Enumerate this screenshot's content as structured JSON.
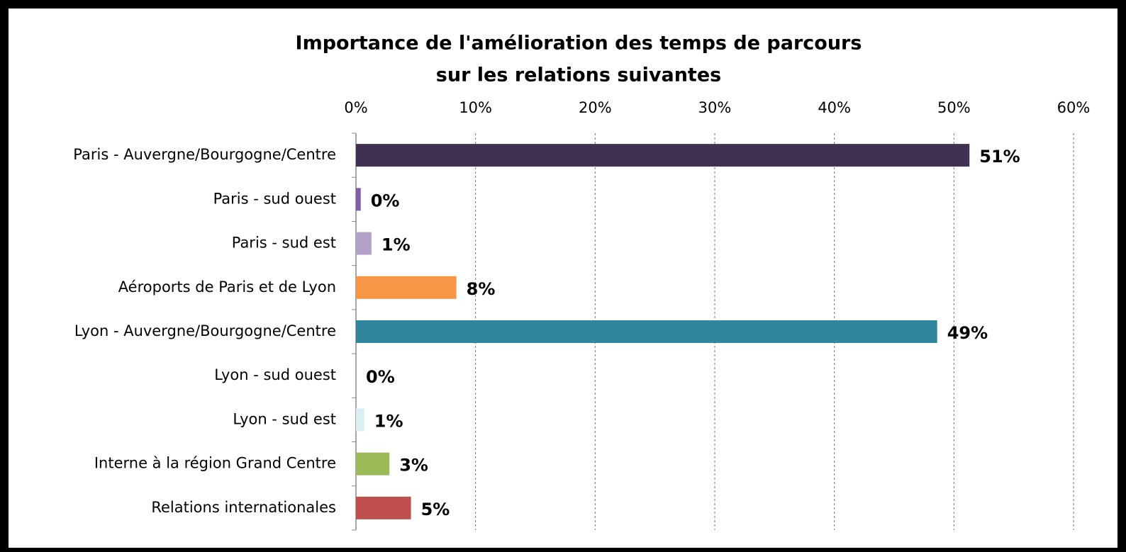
{
  "chart_data": {
    "type": "bar",
    "orientation": "horizontal",
    "title": [
      "Importance de l'amélioration des temps de parcours",
      "sur les relations suivantes"
    ],
    "categories": [
      "Paris - Auvergne/Bourgogne/Centre",
      "Paris - sud ouest",
      "Paris - sud est",
      "Aéroports de Paris et de Lyon",
      "Lyon - Auvergne/Bourgogne/Centre",
      "Lyon - sud ouest",
      "Lyon - sud est",
      "Interne à la région Grand Centre",
      "Relations internationales"
    ],
    "values": [
      51.3,
      0.4,
      1.3,
      8.4,
      48.6,
      0,
      0.7,
      2.8,
      4.6
    ],
    "value_labels": [
      "51%",
      "0%",
      "1%",
      "8%",
      "49%",
      "0%",
      "1%",
      "3%",
      "5%"
    ],
    "colors": [
      "#403152",
      "#7f5fa8",
      "#b3a2c7",
      "#f79646",
      "#31859c",
      "#4bacc6",
      "#dbeef4",
      "#9bbb59",
      "#c0504d"
    ],
    "xlim": [
      0,
      60
    ],
    "xticks": [
      {
        "value": 0,
        "label": "0%"
      },
      {
        "value": 10,
        "label": "10%"
      },
      {
        "value": 20,
        "label": "20%"
      },
      {
        "value": 30,
        "label": "30%"
      },
      {
        "value": 40,
        "label": "40%"
      },
      {
        "value": 50,
        "label": "50%"
      },
      {
        "value": 60,
        "label": "60%"
      }
    ],
    "grid": true
  }
}
